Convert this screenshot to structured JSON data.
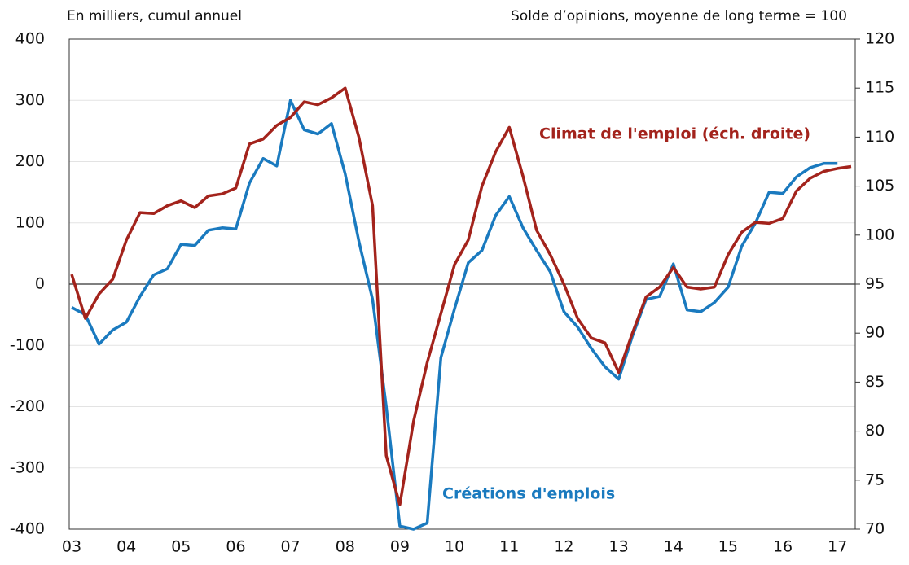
{
  "chart_data": {
    "type": "line",
    "ylabel": "En milliers, cumul annuel",
    "y2label": "Solde d’opinions, moyenne de long terme = 100",
    "categories": [
      "03",
      null,
      null,
      null,
      "04",
      null,
      null,
      null,
      "05",
      null,
      null,
      null,
      "06",
      null,
      null,
      null,
      "07",
      null,
      null,
      null,
      "08",
      null,
      null,
      null,
      "09",
      null,
      null,
      null,
      "10",
      null,
      null,
      null,
      "11",
      null,
      null,
      null,
      "12",
      null,
      null,
      null,
      "13",
      null,
      null,
      null,
      "14",
      null,
      null,
      null,
      "15",
      null,
      null,
      null,
      "16",
      null,
      null,
      null,
      "17",
      null
    ],
    "series": [
      {
        "name": "Créations d'emplois",
        "color": "#1a7abf",
        "axis": "y",
        "values": [
          -38,
          -50,
          -98,
          -75,
          -62,
          -20,
          15,
          25,
          65,
          63,
          88,
          92,
          90,
          165,
          205,
          193,
          300,
          252,
          245,
          262,
          180,
          70,
          -25,
          -200,
          -395,
          -400,
          -390,
          -120,
          -40,
          35,
          55,
          112,
          143,
          92,
          55,
          20,
          -45,
          -70,
          -105,
          -135,
          -155,
          -85,
          -25,
          -20,
          33,
          -42,
          -45,
          -30,
          -5,
          62,
          100,
          150,
          148,
          175,
          190,
          197,
          197,
          null
        ]
      },
      {
        "name": "Climat de l'emploi (éch. droite)",
        "color": "#a3231c",
        "axis": "y2",
        "values": [
          96,
          91.5,
          94,
          95.5,
          99.5,
          102.3,
          102.2,
          103,
          103.5,
          102.8,
          104,
          104.2,
          104.8,
          109.3,
          109.8,
          111.2,
          112,
          113.6,
          113.3,
          114,
          115,
          110,
          103,
          77.5,
          72.5,
          81,
          87,
          92,
          97,
          99.5,
          105,
          108.5,
          111,
          106,
          100.5,
          98,
          95,
          91.5,
          89.5,
          89,
          86,
          90,
          93.7,
          94.7,
          96.7,
          94.7,
          94.5,
          94.7,
          98,
          100.3,
          101.3,
          101.2,
          101.7,
          104.5,
          105.8,
          106.5,
          106.8,
          107
        ]
      }
    ],
    "ylim": [
      -400,
      400
    ],
    "yticks": [
      -400,
      -300,
      -200,
      -100,
      0,
      100,
      200,
      300,
      400
    ],
    "y2lim": [
      70,
      120
    ],
    "y2ticks": [
      70,
      75,
      80,
      85,
      90,
      95,
      100,
      105,
      110,
      115,
      120
    ],
    "grid": true
  }
}
